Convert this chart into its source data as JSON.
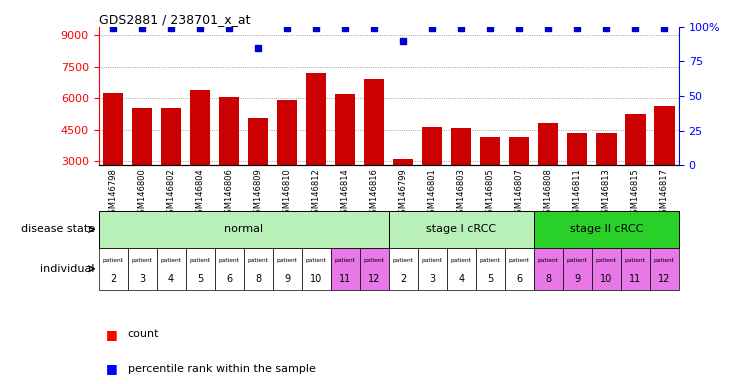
{
  "title": "GDS2881 / 238701_x_at",
  "samples": [
    "GSM146798",
    "GSM146800",
    "GSM146802",
    "GSM146804",
    "GSM146806",
    "GSM146809",
    "GSM146810",
    "GSM146812",
    "GSM146814",
    "GSM146816",
    "GSM146799",
    "GSM146801",
    "GSM146803",
    "GSM146805",
    "GSM146807",
    "GSM146808",
    "GSM146811",
    "GSM146813",
    "GSM146815",
    "GSM146817"
  ],
  "counts": [
    6250,
    5550,
    5550,
    6400,
    6050,
    5050,
    5900,
    7200,
    6200,
    6900,
    3100,
    4600,
    4550,
    4150,
    4150,
    4800,
    4350,
    4350,
    5250,
    5600
  ],
  "percentile_ranks": [
    99,
    99,
    99,
    99,
    99,
    85,
    99,
    99,
    99,
    99,
    90,
    99,
    99,
    99,
    99,
    99,
    99,
    99,
    99,
    99
  ],
  "individual_labels": [
    "2",
    "3",
    "4",
    "5",
    "6",
    "8",
    "9",
    "10",
    "11",
    "12",
    "2",
    "3",
    "4",
    "5",
    "6",
    "8",
    "9",
    "10",
    "11",
    "12"
  ],
  "ind_colors": [
    "#ffffff",
    "#ffffff",
    "#ffffff",
    "#ffffff",
    "#ffffff",
    "#ffffff",
    "#ffffff",
    "#ffffff",
    "#e878e8",
    "#e878e8",
    "#ffffff",
    "#ffffff",
    "#ffffff",
    "#ffffff",
    "#ffffff",
    "#e878e8",
    "#e878e8",
    "#e878e8",
    "#e878e8",
    "#e878e8"
  ],
  "disease_groups": [
    {
      "label": "normal",
      "start": 0,
      "end": 10,
      "color": "#b8f0b8"
    },
    {
      "label": "stage I cRCC",
      "start": 10,
      "end": 15,
      "color": "#b8f0b8"
    },
    {
      "label": "stage II cRCC",
      "start": 15,
      "end": 20,
      "color": "#28d028"
    }
  ],
  "bar_color": "#cc0000",
  "dot_color": "#0000cc",
  "ylim_left": [
    2800,
    9400
  ],
  "ylim_right": [
    0,
    100
  ],
  "yticks_left": [
    3000,
    4500,
    6000,
    7500,
    9000
  ],
  "yticks_right": [
    0,
    25,
    50,
    75,
    100
  ],
  "bar_width": 0.7,
  "bg_color": "#ffffff",
  "grid_color": "#888888"
}
